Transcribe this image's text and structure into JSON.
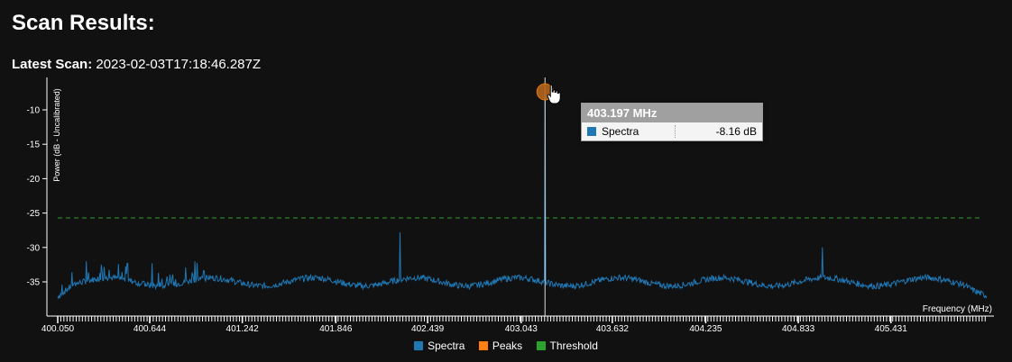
{
  "page": {
    "heading": "Scan Results:",
    "latest_label": "Latest Scan:",
    "latest_value": "2023-02-03T17:18:46.287Z"
  },
  "tooltip": {
    "title": "403.197 MHz",
    "series_name": "Spectra",
    "value": "-8.16 dB"
  },
  "legend": [
    {
      "label": "Spectra",
      "color": "#1f77b4"
    },
    {
      "label": "Peaks",
      "color": "#ff7f0e"
    },
    {
      "label": "Threshold",
      "color": "#2ca02c"
    }
  ],
  "colors": {
    "spectra": "#1f77b4",
    "peaks": "#ff7f0e",
    "threshold": "#2ca02c",
    "axis": "#ffffff",
    "background": "#111111"
  },
  "chart_data": {
    "type": "line",
    "xlabel": "Frequency (MHz)",
    "ylabel": "Power (dB - Uncalibrated)",
    "xlim": [
      400.05,
      406.05
    ],
    "ylim": [
      -39,
      -7
    ],
    "xticks": [
      "400.050",
      "400.644",
      "401.242",
      "401.846",
      "402.439",
      "403.043",
      "403.632",
      "404.235",
      "404.833",
      "405.431"
    ],
    "yticks": [
      -10,
      -15,
      -20,
      -25,
      -30,
      -35
    ],
    "grid": false,
    "legend_position": "bottom",
    "threshold": -25.7,
    "noise_floor_db": -35,
    "series": [
      {
        "name": "Spectra",
        "peaks": [
          {
            "x": 403.197,
            "y": -8.16
          },
          {
            "x": 402.262,
            "y": -27.8
          },
          {
            "x": 404.99,
            "y": -30.0
          },
          {
            "x": 400.236,
            "y": -32.0
          },
          {
            "x": 400.333,
            "y": -32.5
          },
          {
            "x": 400.5,
            "y": -32.3
          },
          {
            "x": 400.936,
            "y": -32.0
          },
          {
            "x": 400.877,
            "y": -32.9
          },
          {
            "x": 400.658,
            "y": -32.3
          }
        ]
      },
      {
        "name": "Peaks",
        "points": [
          {
            "x": 403.197,
            "y": -8.16
          }
        ]
      },
      {
        "name": "Threshold",
        "value": -25.7
      }
    ]
  }
}
